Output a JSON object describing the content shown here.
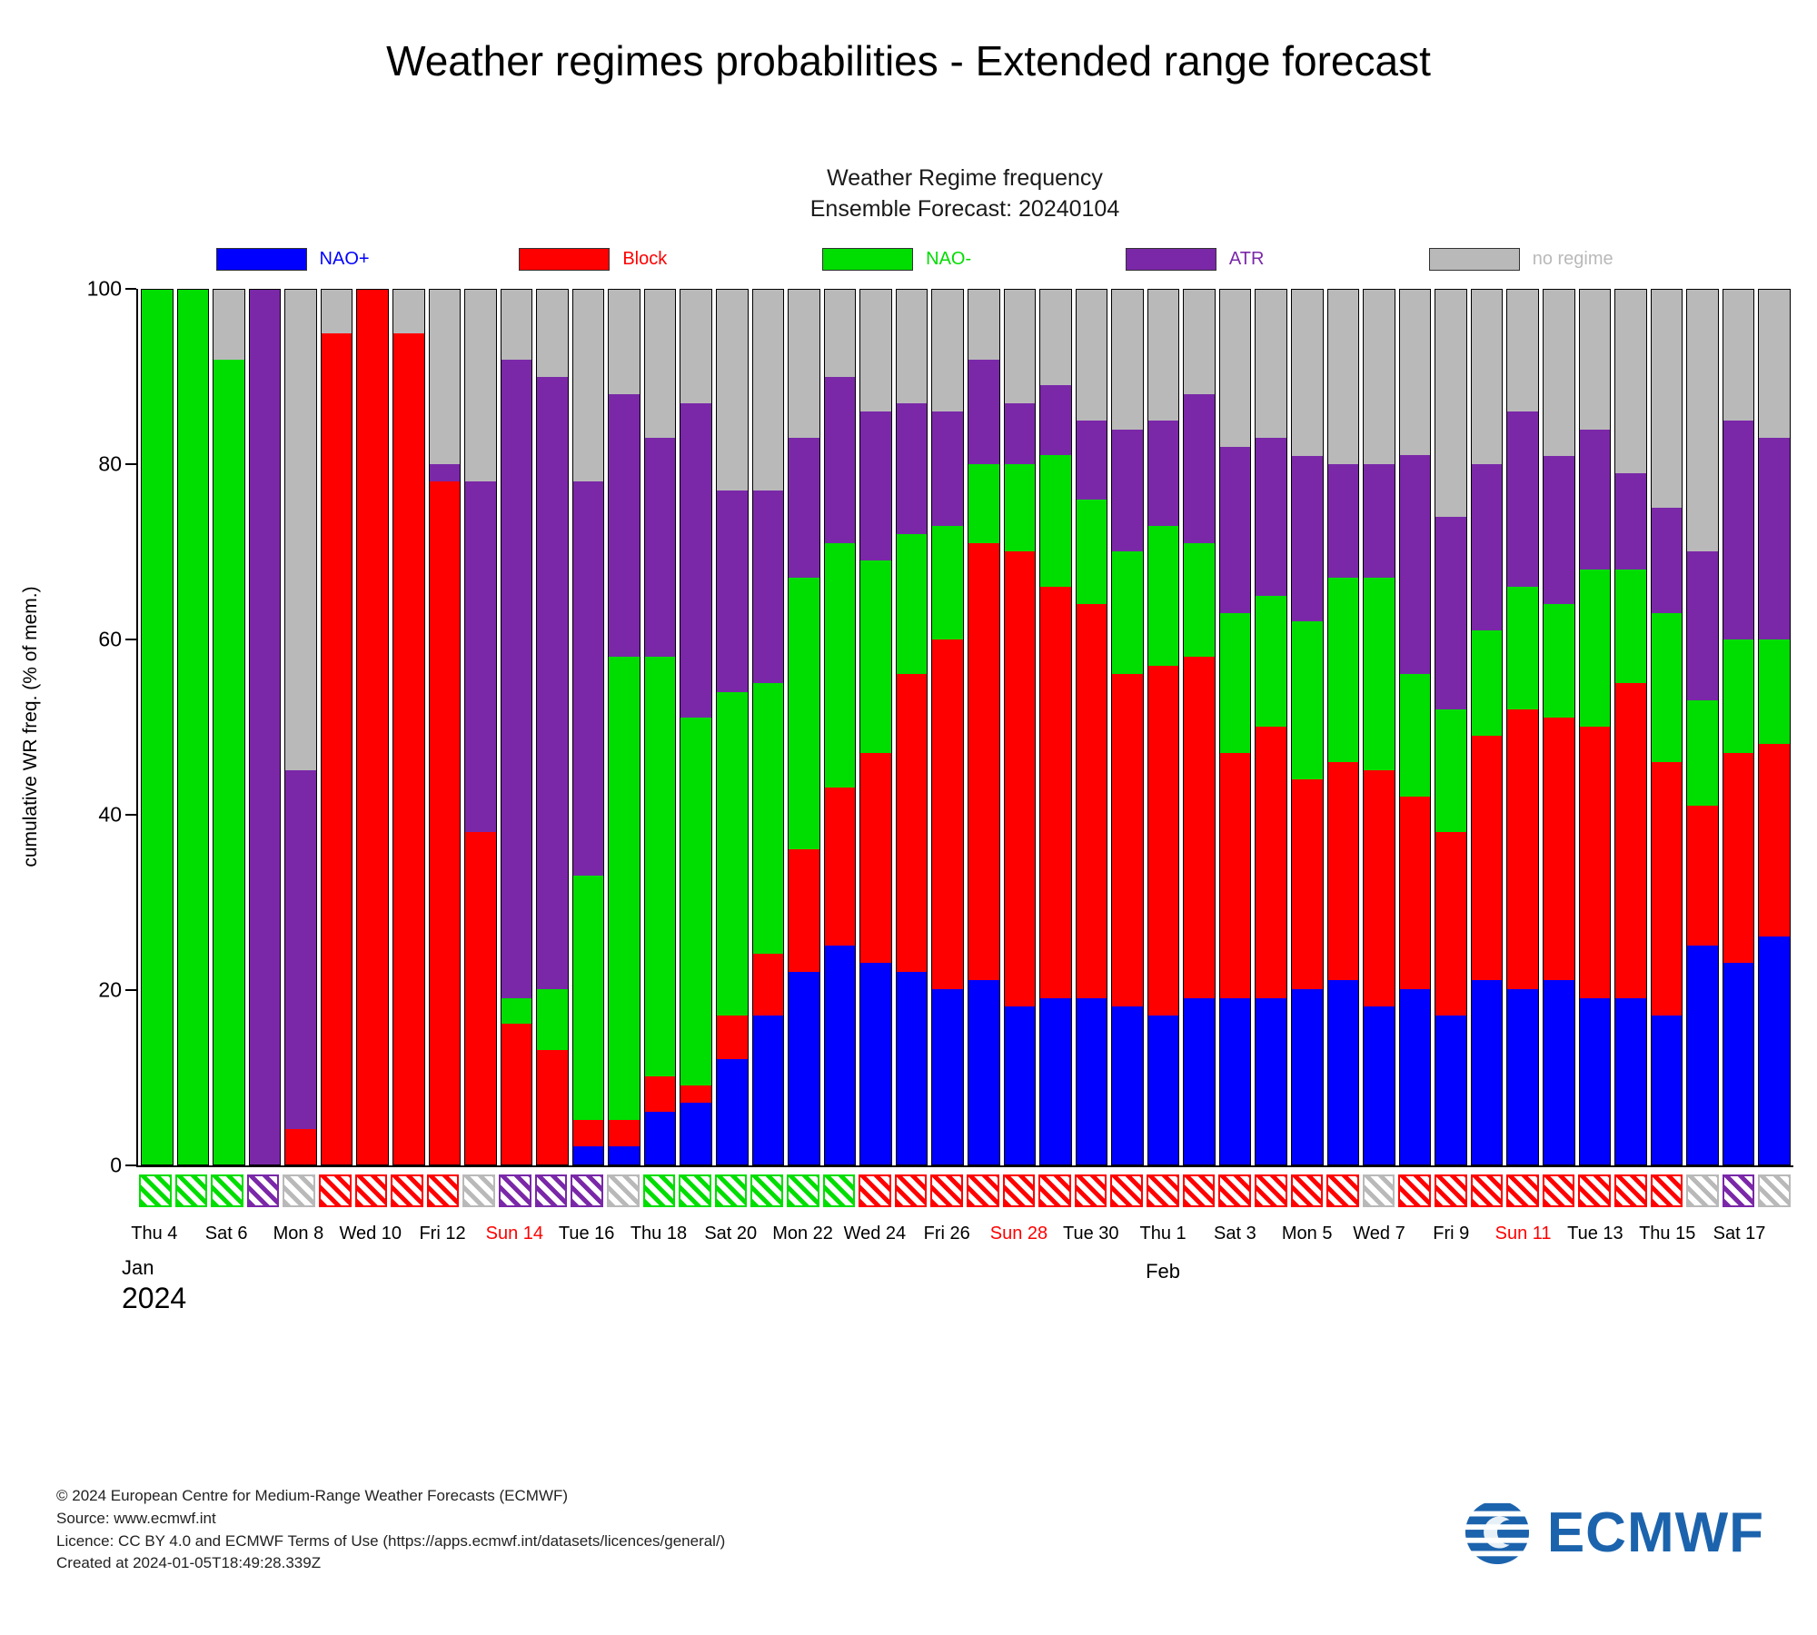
{
  "page": {
    "title": "Weather regimes probabilities - Extended range forecast"
  },
  "footer": {
    "line1": "© 2024 European Centre for Medium-Range Weather Forecasts (ECMWF)",
    "line2": "Source: www.ecmwf.int",
    "line3": "Licence: CC BY 4.0 and ECMWF Terms of Use (https://apps.ecmwf.int/datasets/licences/general/)",
    "line4": "Created at 2024-01-05T18:49:28.339Z",
    "logo_text": "ECMWF"
  },
  "chart_data": {
    "type": "bar",
    "stacked": true,
    "title": "Weather Regime frequency",
    "subtitle": "Ensemble Forecast: 20240104",
    "ylabel": "cumulative WR freq. (% of mem.)",
    "ylim": [
      0,
      100
    ],
    "yticks": [
      0,
      20,
      40,
      60,
      80,
      100
    ],
    "legend_position": "top",
    "grid": false,
    "series": [
      {
        "key": "nao_plus",
        "label": "NAO+",
        "color": "#0000ff"
      },
      {
        "key": "block",
        "label": "Block",
        "color": "#ff0000"
      },
      {
        "key": "nao_minus",
        "label": "NAO-",
        "color": "#00dd00"
      },
      {
        "key": "atr",
        "label": "ATR",
        "color": "#7a28a8"
      },
      {
        "key": "none",
        "label": "no regime",
        "color": "#b9b9b9"
      }
    ],
    "values_order": [
      "NAO+",
      "Block",
      "NAO-",
      "ATR",
      "no regime"
    ],
    "months": [
      {
        "label": "Jan",
        "year": "2024",
        "day_index": 0
      },
      {
        "label": "Feb",
        "day_index": 28
      }
    ],
    "days": [
      {
        "date": "Jan 4",
        "tick": "Thu 4",
        "sunday": false,
        "values": [
          0,
          0,
          100,
          0,
          0
        ],
        "marker": "nao_minus"
      },
      {
        "date": "Jan 5",
        "tick": null,
        "sunday": false,
        "values": [
          0,
          0,
          100,
          0,
          0
        ],
        "marker": "nao_minus"
      },
      {
        "date": "Jan 6",
        "tick": "Sat 6",
        "sunday": false,
        "values": [
          0,
          0,
          92,
          0,
          8
        ],
        "marker": "nao_minus"
      },
      {
        "date": "Jan 7",
        "tick": null,
        "sunday": true,
        "values": [
          0,
          0,
          0,
          100,
          0
        ],
        "marker": "atr"
      },
      {
        "date": "Jan 8",
        "tick": "Mon 8",
        "sunday": false,
        "values": [
          0,
          4,
          0,
          41,
          55
        ],
        "marker": "none"
      },
      {
        "date": "Jan 9",
        "tick": null,
        "sunday": false,
        "values": [
          0,
          95,
          0,
          0,
          5
        ],
        "marker": "block"
      },
      {
        "date": "Jan 10",
        "tick": "Wed 10",
        "sunday": false,
        "values": [
          0,
          100,
          0,
          0,
          0
        ],
        "marker": "block"
      },
      {
        "date": "Jan 11",
        "tick": null,
        "sunday": false,
        "values": [
          0,
          95,
          0,
          0,
          5
        ],
        "marker": "block"
      },
      {
        "date": "Jan 12",
        "tick": "Fri 12",
        "sunday": false,
        "values": [
          0,
          78,
          0,
          2,
          20
        ],
        "marker": "block"
      },
      {
        "date": "Jan 13",
        "tick": null,
        "sunday": false,
        "values": [
          0,
          38,
          0,
          40,
          22
        ],
        "marker": "none"
      },
      {
        "date": "Jan 14",
        "tick": "Sun 14",
        "sunday": true,
        "values": [
          0,
          16,
          3,
          73,
          8
        ],
        "marker": "atr"
      },
      {
        "date": "Jan 15",
        "tick": null,
        "sunday": false,
        "values": [
          0,
          13,
          7,
          70,
          10
        ],
        "marker": "atr"
      },
      {
        "date": "Jan 16",
        "tick": "Tue 16",
        "sunday": false,
        "values": [
          2,
          3,
          28,
          45,
          22
        ],
        "marker": "atr"
      },
      {
        "date": "Jan 17",
        "tick": null,
        "sunday": false,
        "values": [
          2,
          3,
          53,
          30,
          12
        ],
        "marker": "none"
      },
      {
        "date": "Jan 18",
        "tick": "Thu 18",
        "sunday": false,
        "values": [
          6,
          4,
          48,
          25,
          17
        ],
        "marker": "nao_minus"
      },
      {
        "date": "Jan 19",
        "tick": null,
        "sunday": false,
        "values": [
          7,
          2,
          42,
          36,
          13
        ],
        "marker": "nao_minus"
      },
      {
        "date": "Jan 20",
        "tick": "Sat 20",
        "sunday": false,
        "values": [
          12,
          5,
          37,
          23,
          23
        ],
        "marker": "nao_minus"
      },
      {
        "date": "Jan 21",
        "tick": null,
        "sunday": true,
        "values": [
          17,
          7,
          31,
          22,
          23
        ],
        "marker": "nao_minus"
      },
      {
        "date": "Jan 22",
        "tick": "Mon 22",
        "sunday": false,
        "values": [
          22,
          14,
          31,
          16,
          17
        ],
        "marker": "nao_minus"
      },
      {
        "date": "Jan 23",
        "tick": null,
        "sunday": false,
        "values": [
          25,
          18,
          28,
          19,
          10
        ],
        "marker": "nao_minus"
      },
      {
        "date": "Jan 24",
        "tick": "Wed 24",
        "sunday": false,
        "values": [
          23,
          24,
          22,
          17,
          14
        ],
        "marker": "block"
      },
      {
        "date": "Jan 25",
        "tick": null,
        "sunday": false,
        "values": [
          22,
          34,
          16,
          15,
          13
        ],
        "marker": "block"
      },
      {
        "date": "Jan 26",
        "tick": "Fri 26",
        "sunday": false,
        "values": [
          20,
          40,
          13,
          13,
          14
        ],
        "marker": "block"
      },
      {
        "date": "Jan 27",
        "tick": null,
        "sunday": false,
        "values": [
          21,
          50,
          9,
          12,
          8
        ],
        "marker": "block"
      },
      {
        "date": "Jan 28",
        "tick": "Sun 28",
        "sunday": true,
        "values": [
          18,
          52,
          10,
          7,
          13
        ],
        "marker": "block"
      },
      {
        "date": "Jan 29",
        "tick": null,
        "sunday": false,
        "values": [
          19,
          47,
          15,
          8,
          11
        ],
        "marker": "block"
      },
      {
        "date": "Jan 30",
        "tick": "Tue 30",
        "sunday": false,
        "values": [
          19,
          45,
          12,
          9,
          15
        ],
        "marker": "block"
      },
      {
        "date": "Jan 31",
        "tick": null,
        "sunday": false,
        "values": [
          18,
          38,
          14,
          14,
          16
        ],
        "marker": "block"
      },
      {
        "date": "Feb 1",
        "tick": "Thu 1",
        "sunday": false,
        "values": [
          17,
          40,
          16,
          12,
          15
        ],
        "marker": "block"
      },
      {
        "date": "Feb 2",
        "tick": null,
        "sunday": false,
        "values": [
          19,
          39,
          13,
          17,
          12
        ],
        "marker": "block"
      },
      {
        "date": "Feb 3",
        "tick": "Sat 3",
        "sunday": false,
        "values": [
          19,
          28,
          16,
          19,
          18
        ],
        "marker": "block"
      },
      {
        "date": "Feb 4",
        "tick": null,
        "sunday": true,
        "values": [
          19,
          31,
          15,
          18,
          17
        ],
        "marker": "block"
      },
      {
        "date": "Feb 5",
        "tick": "Mon 5",
        "sunday": false,
        "values": [
          20,
          24,
          18,
          19,
          19
        ],
        "marker": "block"
      },
      {
        "date": "Feb 6",
        "tick": null,
        "sunday": false,
        "values": [
          21,
          25,
          21,
          13,
          20
        ],
        "marker": "block"
      },
      {
        "date": "Feb 7",
        "tick": "Wed 7",
        "sunday": false,
        "values": [
          18,
          27,
          22,
          13,
          20
        ],
        "marker": "none"
      },
      {
        "date": "Feb 8",
        "tick": null,
        "sunday": false,
        "values": [
          20,
          22,
          14,
          25,
          19
        ],
        "marker": "block"
      },
      {
        "date": "Feb 9",
        "tick": "Fri 9",
        "sunday": false,
        "values": [
          17,
          21,
          14,
          22,
          26
        ],
        "marker": "block"
      },
      {
        "date": "Feb 10",
        "tick": null,
        "sunday": false,
        "values": [
          21,
          28,
          12,
          19,
          20
        ],
        "marker": "block"
      },
      {
        "date": "Feb 11",
        "tick": "Sun 11",
        "sunday": true,
        "values": [
          20,
          32,
          14,
          20,
          14
        ],
        "marker": "block"
      },
      {
        "date": "Feb 12",
        "tick": null,
        "sunday": false,
        "values": [
          21,
          30,
          13,
          17,
          19
        ],
        "marker": "block"
      },
      {
        "date": "Feb 13",
        "tick": "Tue 13",
        "sunday": false,
        "values": [
          19,
          31,
          18,
          16,
          16
        ],
        "marker": "block"
      },
      {
        "date": "Feb 14",
        "tick": null,
        "sunday": false,
        "values": [
          19,
          36,
          13,
          11,
          21
        ],
        "marker": "block"
      },
      {
        "date": "Feb 15",
        "tick": "Thu 15",
        "sunday": false,
        "values": [
          17,
          29,
          17,
          12,
          25
        ],
        "marker": "block"
      },
      {
        "date": "Feb 16",
        "tick": null,
        "sunday": false,
        "values": [
          25,
          16,
          12,
          17,
          30
        ],
        "marker": "none"
      },
      {
        "date": "Feb 17",
        "tick": "Sat 17",
        "sunday": false,
        "values": [
          23,
          24,
          13,
          25,
          15
        ],
        "marker": "atr"
      },
      {
        "date": "Feb 18",
        "tick": null,
        "sunday": true,
        "values": [
          26,
          22,
          12,
          23,
          17
        ],
        "marker": "none"
      }
    ]
  }
}
